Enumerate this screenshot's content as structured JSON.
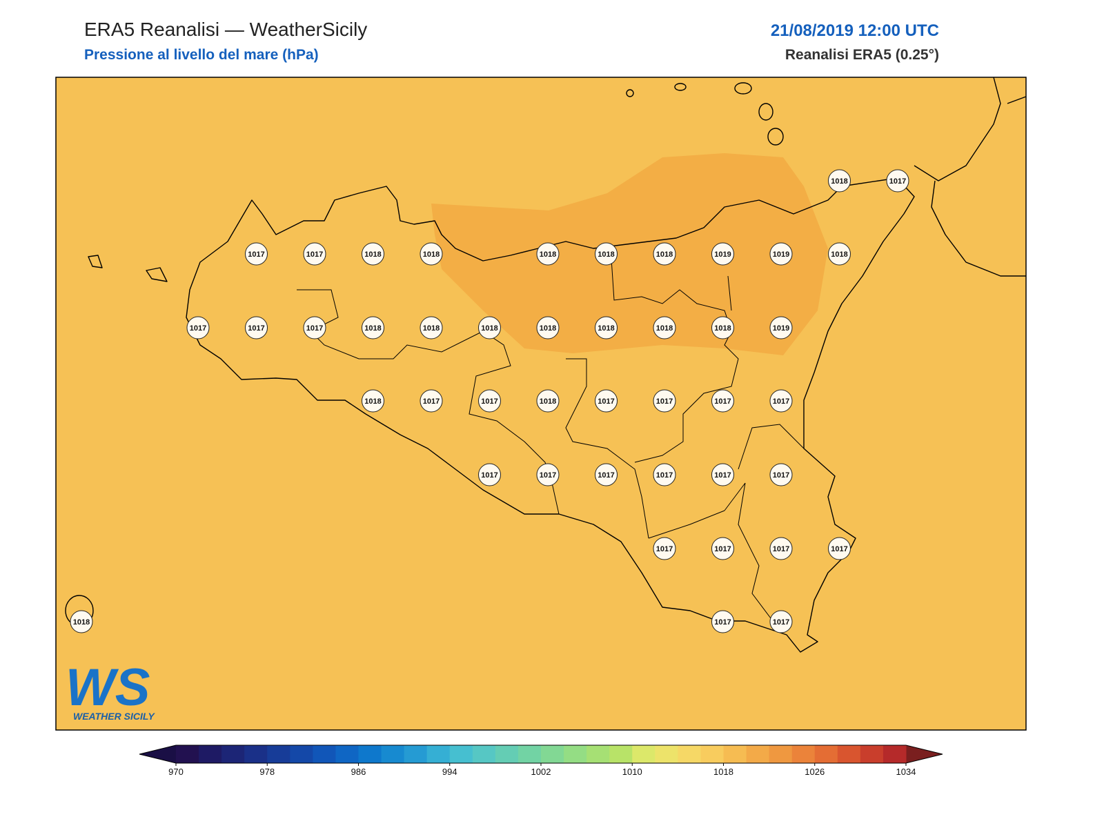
{
  "header": {
    "title": "ERA5 Reanalisi — WeatherSicily",
    "subtitle": "Pressione al livello del mare (hPa)",
    "date": "21/08/2019 12:00 UTC",
    "source": "Reanalisi ERA5 (0.25°)"
  },
  "map": {
    "background_color": "#f6c155",
    "high_color": "#f3ae45",
    "stations": [
      1018,
      1017,
      1017,
      1017,
      1018,
      1018,
      1018,
      1018,
      1018,
      1019,
      1019,
      1018,
      1017,
      1017,
      1017,
      1018,
      1018,
      1018,
      1018,
      1018,
      1018,
      1018,
      1019,
      1018,
      1017,
      1017,
      1018,
      1017,
      1017,
      1017,
      1017,
      1017,
      1017,
      1017,
      1017,
      1017,
      1017,
      1017,
      1017,
      1017,
      1017,
      1018,
      1017,
      1017
    ]
  },
  "logo": {
    "mark": "WS",
    "name": "WEATHER SICILY"
  },
  "colorbar": {
    "lim": [
      970,
      1034
    ],
    "ticks": [
      970,
      978,
      986,
      994,
      1002,
      1010,
      1018,
      1026,
      1034
    ],
    "extend_colors": [
      "#1a0f45",
      "#7a1f1f"
    ],
    "colors": [
      "#221150",
      "#1e1a64",
      "#1c2576",
      "#1a3088",
      "#173c98",
      "#1448a8",
      "#1156b8",
      "#0f66c4",
      "#0e78cc",
      "#178ad0",
      "#259bd3",
      "#35afd4",
      "#46bfd0",
      "#56c7c4",
      "#64cdb4",
      "#72d3a4",
      "#82d894",
      "#94dd84",
      "#a6e074",
      "#b8e368",
      "#dce86a",
      "#ede36a",
      "#f6d866",
      "#f8cc5e",
      "#f6bc52",
      "#f3aa48",
      "#ef9840",
      "#eb833a",
      "#e46d34",
      "#d9552f",
      "#c93e2c",
      "#b52a2a"
    ]
  }
}
